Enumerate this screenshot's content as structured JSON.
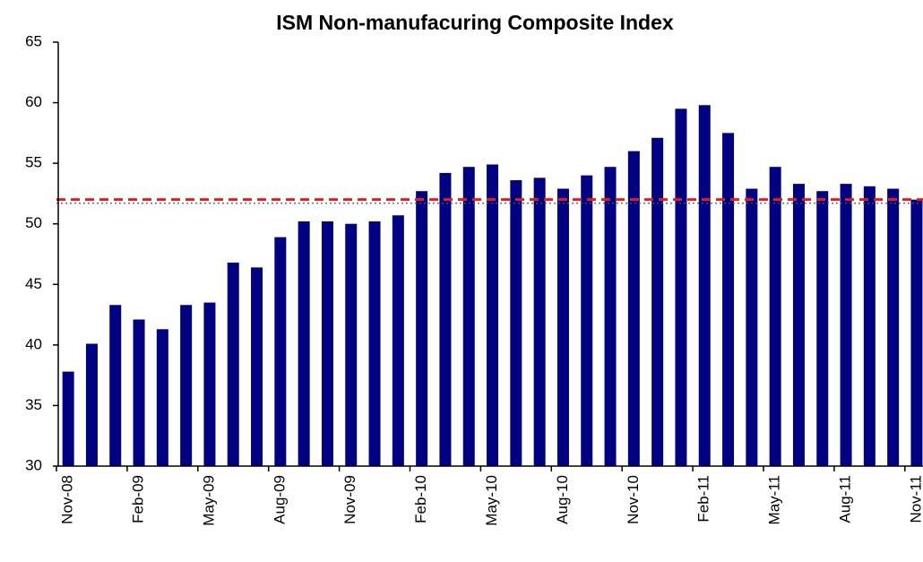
{
  "chart_data": {
    "type": "bar",
    "title": "ISM Non-manufacuring Composite Index",
    "categories": [
      "Nov-08",
      null,
      null,
      "Feb-09",
      null,
      null,
      "May-09",
      null,
      null,
      "Aug-09",
      null,
      null,
      "Nov-09",
      null,
      null,
      "Feb-10",
      null,
      null,
      "May-10",
      null,
      null,
      "Aug-10",
      null,
      null,
      "Nov-10",
      null,
      null,
      "Feb-11",
      null,
      null,
      "May-11",
      null,
      null,
      "Aug-11",
      null,
      null,
      "Nov-11"
    ],
    "values": [
      37.8,
      40.1,
      43.3,
      42.1,
      41.3,
      43.3,
      43.5,
      46.8,
      46.4,
      48.9,
      50.2,
      50.2,
      50.0,
      50.2,
      50.7,
      52.7,
      54.2,
      54.7,
      54.9,
      53.6,
      53.8,
      52.9,
      54.0,
      54.7,
      56.0,
      57.1,
      59.5,
      59.8,
      57.5,
      52.9,
      54.7,
      53.3,
      52.7,
      53.3,
      53.1,
      52.9,
      52.0
    ],
    "color": "#000080",
    "ylim": [
      30,
      65
    ],
    "yticks": [
      30,
      35,
      40,
      45,
      50,
      55,
      60,
      65
    ],
    "reference_lines": [
      {
        "value": 52,
        "color": "#e0201a",
        "style": "dashed"
      },
      {
        "value": 51.7,
        "color": "#555555",
        "style": "dotted"
      }
    ]
  }
}
